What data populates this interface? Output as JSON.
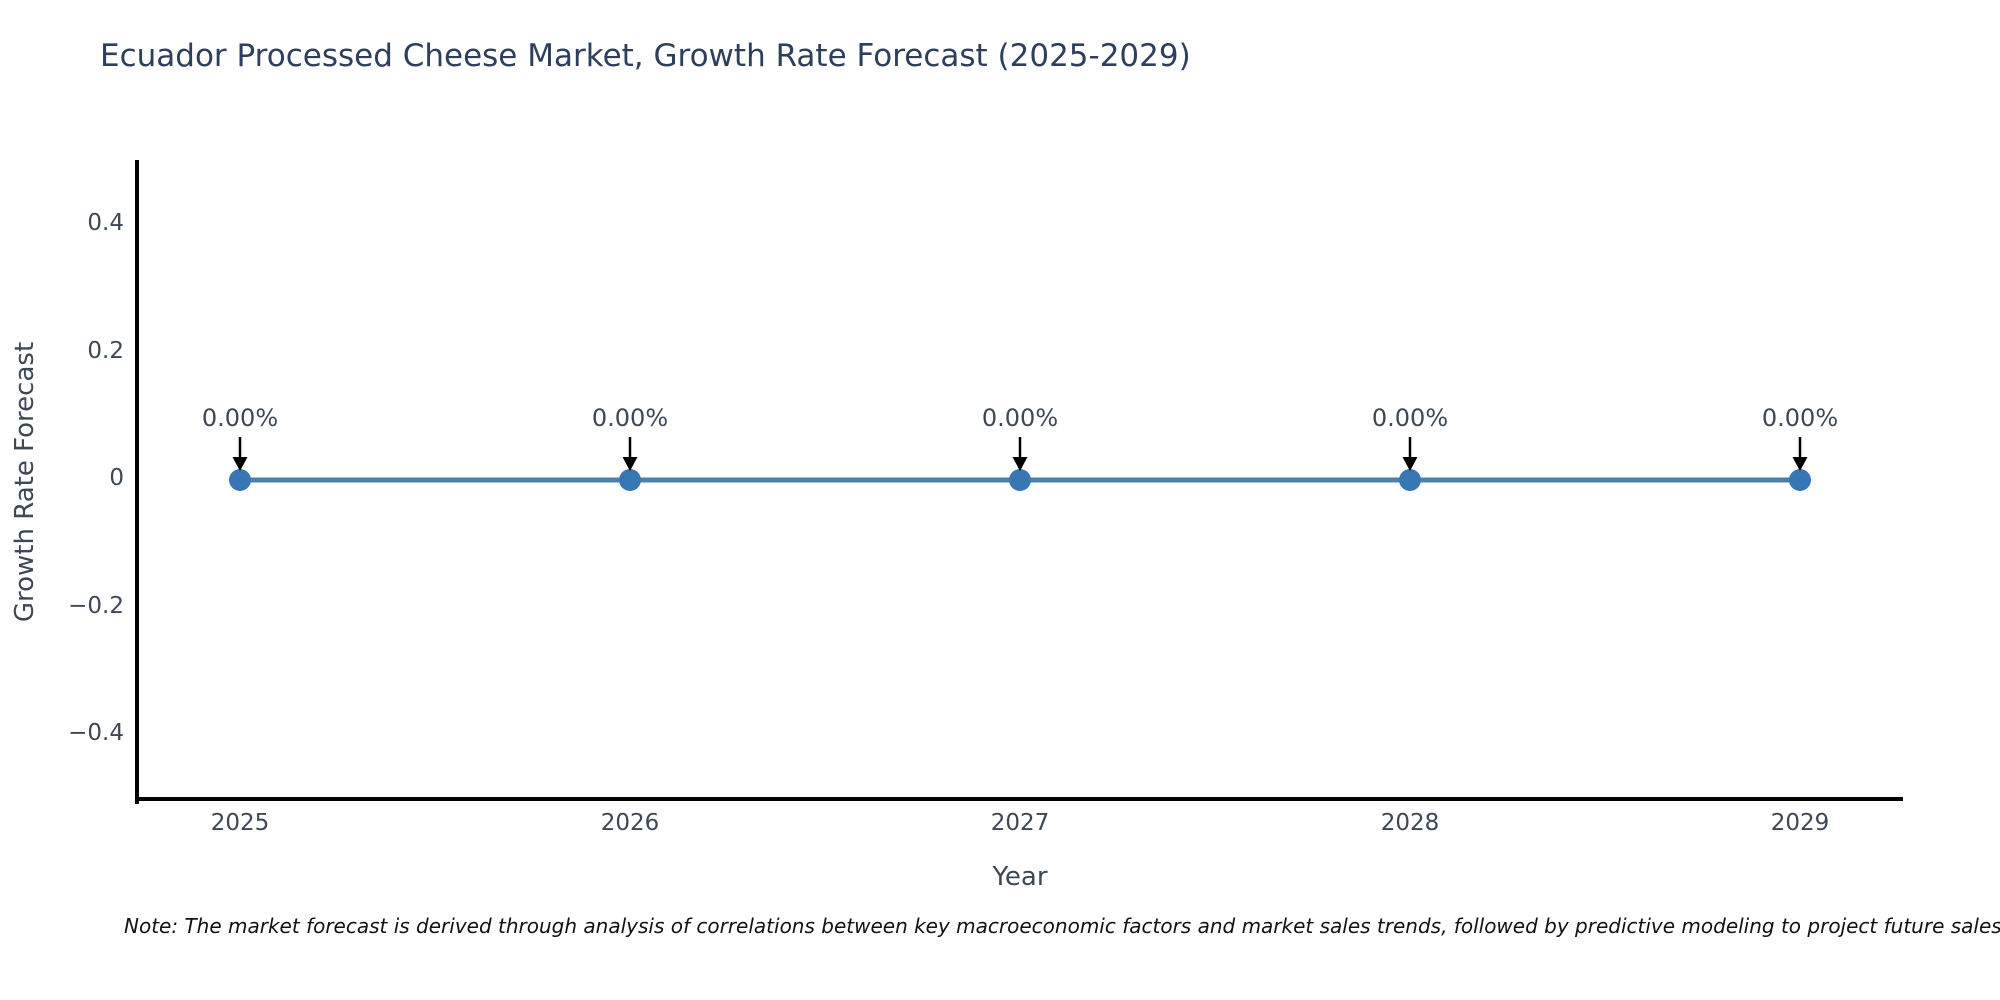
{
  "page": {
    "note": "Note: The market forecast is derived through analysis of correlations between key macroeconomic factors and market sales trends, followed by predictive modeling to project future sales"
  },
  "chart_data": {
    "type": "line",
    "title": "Ecuador Processed Cheese Market, Growth Rate Forecast (2025-2029)",
    "xlabel": "Year",
    "ylabel": "Growth Rate Forecast",
    "categories": [
      "2025",
      "2026",
      "2027",
      "2028",
      "2029"
    ],
    "series": [
      {
        "name": "Growth Rate Forecast",
        "values": [
          0,
          0,
          0,
          0,
          0
        ]
      }
    ],
    "point_labels": [
      "0.00%",
      "0.00%",
      "0.00%",
      "0.00%",
      "0.00%"
    ],
    "ylim": [
      -0.5,
      0.5
    ],
    "yticks": [
      0.4,
      0.2,
      0,
      -0.2,
      -0.4
    ],
    "ytick_labels": [
      "0.4",
      "0.2",
      "0",
      "−0.2",
      "−0.4"
    ],
    "grid": false,
    "legend_position": "none",
    "annotation_arrow_direction": "down"
  },
  "style": {
    "background": "#ffffff",
    "title_color": "#2e3f5c",
    "tick_label_color": "#3d4856",
    "axis_label_color": "#3d4856",
    "annotation_color": "#3d4856",
    "axis_line_color": "#000000",
    "line_color": "#4d80a8",
    "marker_color": "#3876b4",
    "arrow_color": "#000000",
    "note_color": "#111111"
  }
}
